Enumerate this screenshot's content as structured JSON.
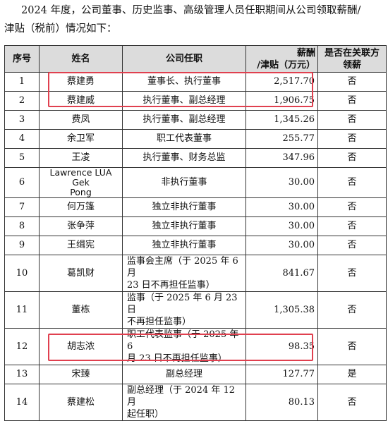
{
  "intro": {
    "line1": "2024 年度，公司董事、历史监事、高级管理人员任职期间从公司领取薪酬/",
    "line2": "津贴（税前）情况如下："
  },
  "table": {
    "headers": {
      "seq": "序号",
      "name": "姓名",
      "position": "公司任职",
      "pay_line1": "薪酬",
      "pay_line2": "/津贴（万元）",
      "related_line1": "是否在关联方",
      "related_line2": "领薪"
    },
    "rows": [
      {
        "seq": "1",
        "name": "蔡建勇",
        "position": "董事长、执行董事",
        "pay": "2,517.70",
        "related": "否"
      },
      {
        "seq": "2",
        "name": "蔡建威",
        "position": "执行董事、副总经理",
        "pay": "1,906.75",
        "related": "否"
      },
      {
        "seq": "3",
        "name": "费凤",
        "position": "执行董事、副总经理",
        "pay": "1,345.26",
        "related": "否"
      },
      {
        "seq": "4",
        "name": "余卫军",
        "position": "职工代表董事",
        "pay": "255.77",
        "related": "否"
      },
      {
        "seq": "5",
        "name": "王凌",
        "position": "执行董事、财务总监",
        "pay": "347.96",
        "related": "否"
      },
      {
        "seq": "6",
        "name_line1": "Lawrence LUA Gek",
        "name_line2": "Pong",
        "position": "非执行董事",
        "pay": "30.00",
        "related": "否"
      },
      {
        "seq": "7",
        "name": "何万篷",
        "position": "独立非执行董事",
        "pay": "30.00",
        "related": "否"
      },
      {
        "seq": "8",
        "name": "张争萍",
        "position": "独立非执行董事",
        "pay": "30.00",
        "related": "否"
      },
      {
        "seq": "9",
        "name": "王缉宪",
        "position": "独立非执行董事",
        "pay": "30.00",
        "related": "否"
      },
      {
        "seq": "10",
        "name": "葛凯财",
        "position_line1": "监事会主席（于 2025 年 6 月",
        "position_line2": "23 日不再担任监事）",
        "pay": "841.67",
        "related": "否"
      },
      {
        "seq": "11",
        "name": "董栋",
        "position_line1": "监事（于 2025 年 6 月 23 日",
        "position_line2": "不再担任监事）",
        "pay": "1,305.38",
        "related": "否"
      },
      {
        "seq": "12",
        "name": "胡志浓",
        "position_line1": "职工代表监事（于 2025 年 6",
        "position_line2": "月 23 日不再担任监事）",
        "pay": "98.35",
        "related": "否"
      },
      {
        "seq": "13",
        "name": "宋臻",
        "position": "副总经理",
        "pay": "127.77",
        "related": "是"
      },
      {
        "seq": "14",
        "name": "蔡建松",
        "position_line1": "副总经理（于 2024 年 12 月",
        "position_line2": "起任职）",
        "pay": "80.13",
        "related": "否"
      }
    ]
  },
  "colors": {
    "highlight": "#e0404f",
    "header_bg": "#dcdcdc"
  }
}
